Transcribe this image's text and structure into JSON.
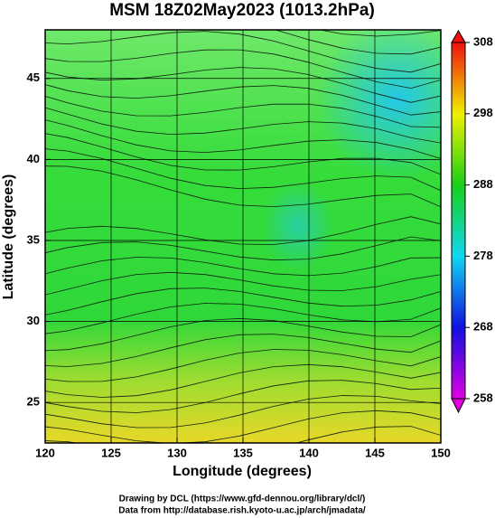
{
  "chart_data": {
    "type": "map",
    "title": "MSM 18Z02May2023 (1013.2hPa)",
    "x_label": "Longitude (degrees)",
    "y_label": "Latitude  (degrees)",
    "xlim": [
      120,
      150
    ],
    "xticks": [
      120,
      125,
      130,
      135,
      140,
      145,
      150
    ],
    "ylim": [
      22.5,
      48
    ],
    "yticks": [
      25,
      30,
      35,
      40,
      45
    ],
    "grid": true,
    "colorbar": {
      "lim": [
        258,
        308
      ],
      "ticks": [
        258,
        268,
        278,
        288,
        298,
        308
      ]
    }
  },
  "footer": [
    "Drawing by DCL (https://www.gfd-dennou.org/library/dcl/)",
    "Data from http://database.rish.kyoto-u.ac.jp/arch/jmadata/"
  ]
}
